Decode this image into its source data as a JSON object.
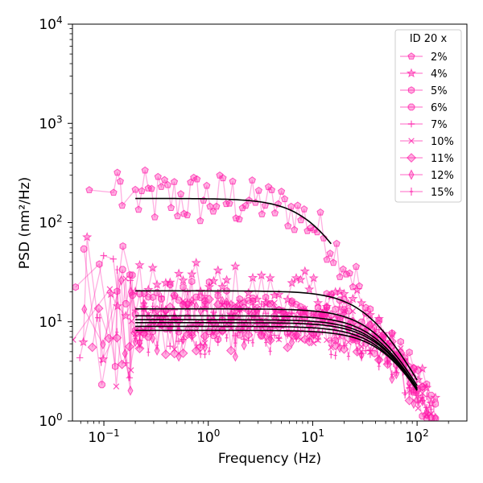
{
  "chart_data": {
    "type": "line",
    "xscale": "log",
    "yscale": "log",
    "xlim": [
      0.05,
      300
    ],
    "ylim": [
      1,
      10000
    ],
    "xlabel": "Frequency (Hz)",
    "ylabel": "PSD (nm²/Hz)",
    "x_ticks": [
      {
        "value": 0.1,
        "base": "10",
        "exp": "−1"
      },
      {
        "value": 1,
        "base": "10",
        "exp": "0"
      },
      {
        "value": 10,
        "base": "10",
        "exp": "1"
      },
      {
        "value": 100,
        "base": "10",
        "exp": "2"
      }
    ],
    "y_ticks": [
      {
        "value": 1,
        "base": "10",
        "exp": "0"
      },
      {
        "value": 10,
        "base": "10",
        "exp": "1"
      },
      {
        "value": 100,
        "base": "10",
        "exp": "2"
      },
      {
        "value": 1000,
        "base": "10",
        "exp": "3"
      },
      {
        "value": 10000,
        "base": "10",
        "exp": "4"
      }
    ],
    "legend": {
      "title": "ID 20 x",
      "position": "upper-right"
    },
    "series_color": "#ff1aa8",
    "fit_color": "#000000",
    "series": [
      {
        "name": "2%",
        "marker": "pentagon",
        "plateau": 175,
        "corner": 11,
        "fmin": 0.2,
        "fmax": 28
      },
      {
        "name": "4%",
        "marker": "star",
        "plateau": 20.5,
        "corner": 38,
        "fmin": 0.2,
        "fmax": 150
      },
      {
        "name": "5%",
        "marker": "hexagon",
        "plateau": 13.5,
        "corner": 45,
        "fmin": 0.2,
        "fmax": 150
      },
      {
        "name": "6%",
        "marker": "octagon",
        "plateau": 11.5,
        "corner": 48,
        "fmin": 0.2,
        "fmax": 150
      },
      {
        "name": "7%",
        "marker": "plus",
        "plateau": 10.5,
        "corner": 50,
        "fmin": 0.2,
        "fmax": 150
      },
      {
        "name": "10%",
        "marker": "x",
        "plateau": 9.8,
        "corner": 52,
        "fmin": 0.2,
        "fmax": 150
      },
      {
        "name": "11%",
        "marker": "diamond",
        "plateau": 9.0,
        "corner": 54,
        "fmin": 0.2,
        "fmax": 150
      },
      {
        "name": "12%",
        "marker": "thin-diamond",
        "plateau": 8.5,
        "corner": 56,
        "fmin": 0.2,
        "fmax": 150
      },
      {
        "name": "15%",
        "marker": "vline",
        "plateau": 8.2,
        "corner": 58,
        "fmin": 0.2,
        "fmax": 150
      }
    ],
    "fits": [
      {
        "plateau": 175,
        "corner": 11,
        "fmin": 0.2,
        "fmax": 15
      },
      {
        "plateau": 20.5,
        "corner": 38,
        "fmin": 0.2,
        "fmax": 100
      },
      {
        "plateau": 13.5,
        "corner": 45,
        "fmin": 0.2,
        "fmax": 100
      },
      {
        "plateau": 11.5,
        "corner": 48,
        "fmin": 0.2,
        "fmax": 100
      },
      {
        "plateau": 10.5,
        "corner": 50,
        "fmin": 0.2,
        "fmax": 100
      },
      {
        "plateau": 9.8,
        "corner": 52,
        "fmin": 0.2,
        "fmax": 100
      },
      {
        "plateau": 9.0,
        "corner": 54,
        "fmin": 0.2,
        "fmax": 100
      },
      {
        "plateau": 8.2,
        "corner": 58,
        "fmin": 0.2,
        "fmax": 100
      }
    ]
  }
}
